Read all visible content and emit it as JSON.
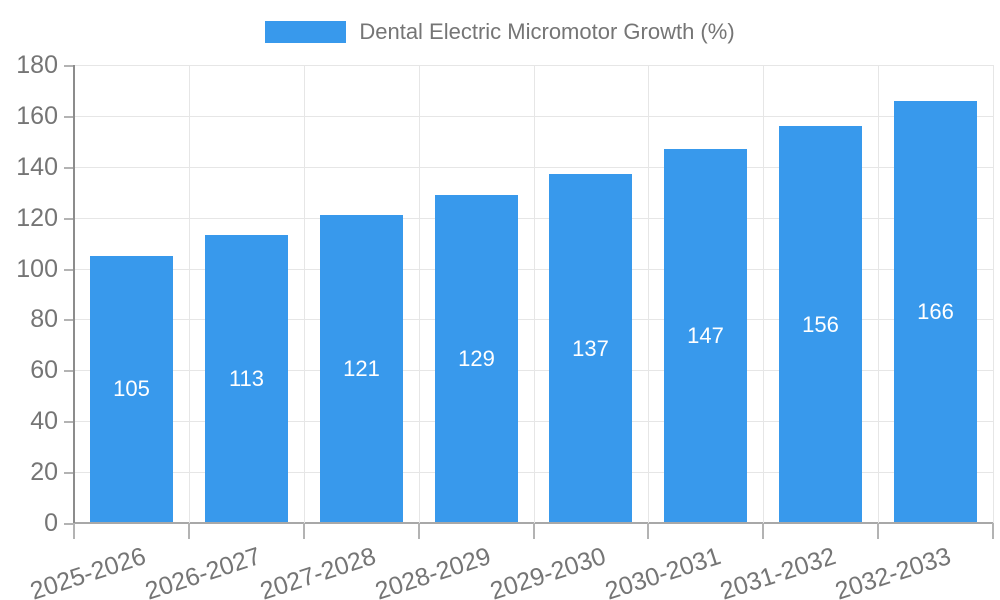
{
  "chart_data": {
    "type": "bar",
    "legend_label": "Dental Electric Micromotor Growth (%)",
    "categories": [
      "2025-2026",
      "2026-2027",
      "2027-2028",
      "2028-2029",
      "2029-2030",
      "2030-2031",
      "2031-2032",
      "2032-2033"
    ],
    "series": [
      {
        "name": "Dental Electric Micromotor Growth (%)",
        "values": [
          105,
          113,
          121,
          129,
          137,
          147,
          156,
          166
        ]
      }
    ],
    "value_labels": [
      "105",
      "113",
      "121",
      "129",
      "137",
      "147",
      "156",
      "166"
    ],
    "ylabel": "",
    "xlabel": "",
    "ylim": [
      0,
      180
    ],
    "yticks": [
      0,
      20,
      40,
      60,
      80,
      100,
      120,
      140,
      160,
      180
    ],
    "grid": "on",
    "legend_position": "top-center",
    "colors": {
      "bar": "#3899ec",
      "value_label_text": "#ffffff",
      "axis_text": "#757575",
      "gridline": "#e6e6e6",
      "axis_line": "#8c8c8c",
      "background": "#ffffff"
    }
  }
}
